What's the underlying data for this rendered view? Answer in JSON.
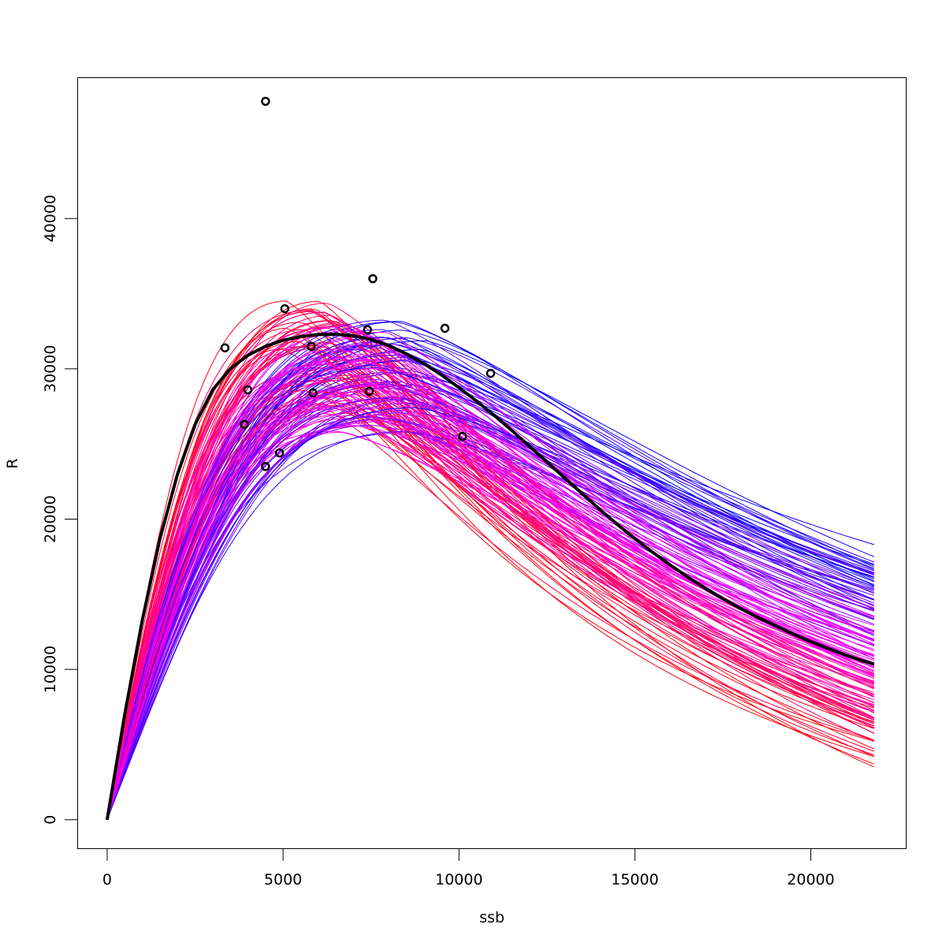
{
  "chart_data": {
    "type": "line",
    "title": "",
    "xlabel": "ssb",
    "ylabel": "R",
    "xlim": [
      -850,
      22700
    ],
    "ylim": [
      -1900,
      49400
    ],
    "xticks": [
      {
        "value": 0,
        "label": "0"
      },
      {
        "value": 5000,
        "label": "5000"
      },
      {
        "value": 10000,
        "label": "10000"
      },
      {
        "value": 15000,
        "label": "15000"
      },
      {
        "value": 20000,
        "label": "20000"
      }
    ],
    "yticks": [
      {
        "value": 0,
        "label": "0"
      },
      {
        "value": 10000,
        "label": "10000"
      },
      {
        "value": 20000,
        "label": "20000"
      },
      {
        "value": 30000,
        "label": "30000"
      },
      {
        "value": 40000,
        "label": "40000"
      }
    ],
    "grid": false,
    "legend": "none",
    "colors": {
      "low_end": "#ff0000",
      "mid": "#ff00ff",
      "high_end": "#0000ff",
      "fit": "#000000"
    },
    "x_max": 21800,
    "fitted_curve": {
      "name": "fit",
      "x": [
        0,
        500,
        1000,
        1500,
        2000,
        2500,
        3000,
        3500,
        4000,
        4500,
        5000,
        5500,
        6000,
        6500,
        7000,
        7500,
        8000,
        8500,
        9000,
        9500,
        10000,
        10500,
        11000,
        11500,
        12000,
        12500,
        13000,
        13500,
        14000,
        14500,
        15000,
        15500,
        16000,
        16500,
        17000,
        17500,
        18000,
        18500,
        19000,
        19500,
        20000,
        20500,
        21000,
        21500,
        21800
      ],
      "y": [
        0,
        7000,
        13300,
        18700,
        23000,
        26300,
        28600,
        30000,
        30900,
        31500,
        31900,
        32150,
        32280,
        32300,
        32200,
        31950,
        31550,
        31000,
        30350,
        29600,
        28750,
        27850,
        26900,
        25900,
        24850,
        23800,
        22750,
        21700,
        20650,
        19650,
        18700,
        17800,
        16950,
        16150,
        15400,
        14700,
        14050,
        13450,
        12900,
        12350,
        11850,
        11380,
        10950,
        10550,
        10350
      ]
    },
    "bootstrap_curves": {
      "count": 160,
      "peak_ssb_range": [
        5200,
        9300
      ],
      "peak_r_range": [
        26800,
        36800
      ],
      "end_r_range": [
        3100,
        20400
      ]
    },
    "observations": [
      {
        "x": 3350,
        "y": 31400
      },
      {
        "x": 3900,
        "y": 26300
      },
      {
        "x": 4000,
        "y": 28600
      },
      {
        "x": 4500,
        "y": 47800
      },
      {
        "x": 4500,
        "y": 23500
      },
      {
        "x": 4900,
        "y": 24400
      },
      {
        "x": 5050,
        "y": 34000
      },
      {
        "x": 5800,
        "y": 31500
      },
      {
        "x": 5850,
        "y": 28400
      },
      {
        "x": 7400,
        "y": 32600
      },
      {
        "x": 7450,
        "y": 28500
      },
      {
        "x": 7550,
        "y": 36000
      },
      {
        "x": 9600,
        "y": 32700
      },
      {
        "x": 10100,
        "y": 25500
      },
      {
        "x": 10900,
        "y": 29700
      }
    ]
  }
}
